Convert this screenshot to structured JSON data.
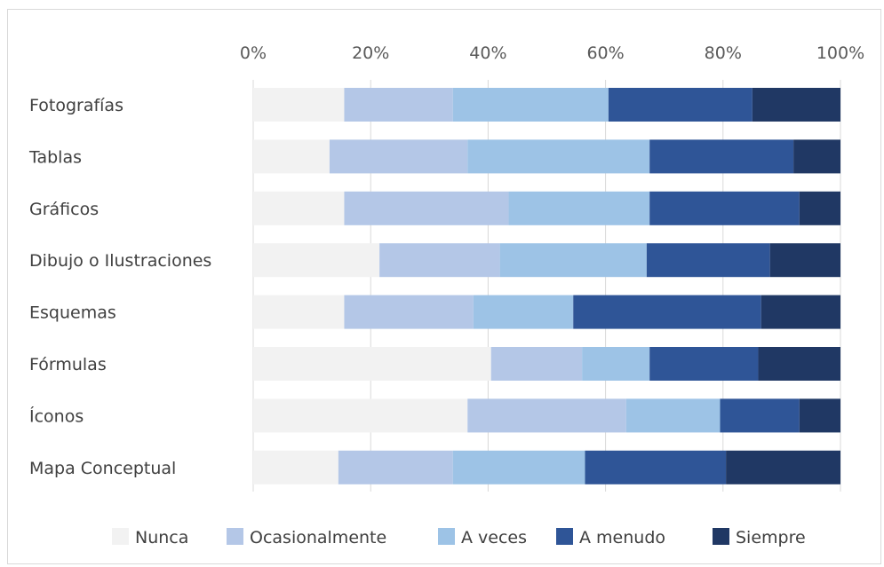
{
  "chart_data": {
    "type": "bar",
    "orientation": "horizontal",
    "stacked": "percent",
    "categories": [
      "Fotografías",
      "Tablas",
      "Gráficos",
      "Dibujo o Ilustraciones",
      "Esquemas",
      "Fórmulas",
      "Íconos",
      "Mapa Conceptual"
    ],
    "x_ticks": [
      "0%",
      "20%",
      "40%",
      "60%",
      "80%",
      "100%"
    ],
    "xlim": [
      0,
      100
    ],
    "x_axis_position": "top",
    "grid": true,
    "legend_position": "bottom",
    "series": [
      {
        "name": "Nunca",
        "color": "#f2f2f2",
        "values": [
          15.5,
          13.0,
          15.5,
          21.5,
          15.5,
          40.5,
          36.5,
          14.5
        ]
      },
      {
        "name": "Ocasionalmente",
        "color": "#b4c7e7",
        "values": [
          18.5,
          23.5,
          28.0,
          20.5,
          22.0,
          15.5,
          27.0,
          19.5
        ]
      },
      {
        "name": "A veces",
        "color": "#9dc3e6",
        "values": [
          26.5,
          31.0,
          24.0,
          25.0,
          17.0,
          11.5,
          16.0,
          22.5
        ]
      },
      {
        "name": "A menudo",
        "color": "#2f5597",
        "values": [
          24.5,
          24.5,
          25.5,
          21.0,
          32.0,
          18.5,
          13.5,
          24.0
        ]
      },
      {
        "name": "Siempre",
        "color": "#203864",
        "values": [
          15.0,
          8.0,
          7.0,
          12.0,
          13.5,
          14.0,
          7.0,
          19.5
        ]
      }
    ]
  }
}
